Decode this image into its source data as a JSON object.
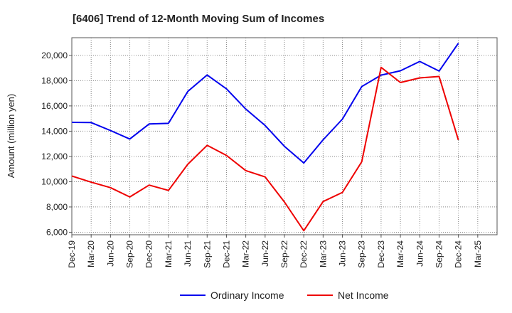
{
  "chart_data": {
    "type": "line",
    "title": "[6406]  Trend of 12-Month Moving Sum of Incomes",
    "xlabel": "",
    "ylabel": "Amount (million yen)",
    "ylim": [
      5800,
      21400
    ],
    "y_ticks": [
      6000,
      8000,
      10000,
      12000,
      14000,
      16000,
      18000,
      20000
    ],
    "y_tick_labels": [
      "6,000",
      "8,000",
      "10,000",
      "12,000",
      "14,000",
      "16,000",
      "18,000",
      "20,000"
    ],
    "categories": [
      "Dec-19",
      "Mar-20",
      "Jun-20",
      "Sep-20",
      "Dec-20",
      "Mar-21",
      "Jun-21",
      "Sep-21",
      "Dec-21",
      "Mar-22",
      "Jun-22",
      "Sep-22",
      "Dec-22",
      "Mar-23",
      "Jun-23",
      "Sep-23",
      "Dec-23",
      "Mar-24",
      "Jun-24",
      "Sep-24",
      "Dec-24",
      "Mar-25"
    ],
    "series": [
      {
        "name": "Ordinary Income",
        "color": "#0000ee",
        "values": [
          14700,
          14680,
          14050,
          13380,
          14570,
          14620,
          17150,
          18450,
          17350,
          15750,
          14450,
          12800,
          11480,
          13320,
          14950,
          17530,
          18440,
          18780,
          19520,
          18760,
          20960,
          null
        ]
      },
      {
        "name": "Net Income",
        "color": "#ee0000",
        "values": [
          10450,
          9960,
          9530,
          8790,
          9730,
          9310,
          11380,
          12880,
          12080,
          10880,
          10380,
          8390,
          6120,
          8430,
          9150,
          11580,
          19050,
          17850,
          18220,
          18330,
          13300,
          null
        ]
      }
    ],
    "grid": true,
    "legend_position": "bottom-center"
  }
}
